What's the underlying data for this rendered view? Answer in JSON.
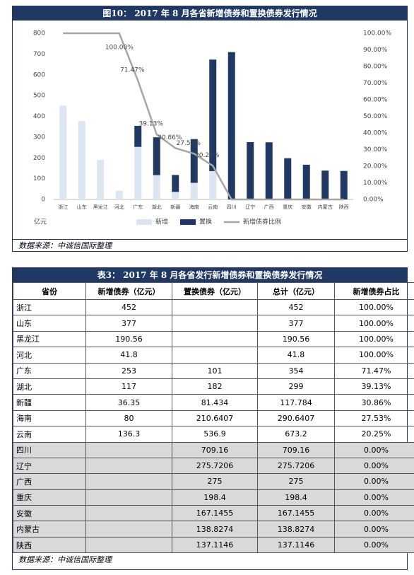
{
  "figure_title": "图10： 2017 年 8 月各省新增债券和置换债券发行情况",
  "chart_data": {
    "type": "stacked-bar-line",
    "y_label": "亿元",
    "categories": [
      "浙江",
      "山东",
      "黑龙江",
      "河北",
      "广东",
      "湖北",
      "新疆",
      "海南",
      "云南",
      "四川",
      "辽宁",
      "广西",
      "重庆",
      "安徽",
      "内蒙古",
      "陕西"
    ],
    "series": [
      {
        "name": "新增",
        "type": "bar",
        "color": "#dce6f2",
        "values": [
          452,
          377,
          190.56,
          41.8,
          253,
          117,
          36.35,
          80,
          136.3,
          null,
          null,
          null,
          null,
          null,
          null,
          null
        ]
      },
      {
        "name": "置换",
        "type": "bar",
        "color": "#1f3864",
        "values": [
          null,
          null,
          null,
          null,
          101,
          182,
          81.434,
          210.6407,
          536.9,
          709.16,
          275.7206,
          275,
          198.4,
          167.1455,
          138.8274,
          137.1146
        ]
      },
      {
        "name": "新增债券比例",
        "type": "line",
        "axis": "y2",
        "color": "#a6a6a6",
        "values": [
          100,
          100,
          100,
          100,
          71.47,
          39.13,
          30.86,
          27.53,
          20.25,
          0,
          0,
          0,
          0,
          0,
          0,
          0
        ],
        "value_labels": [
          null,
          null,
          null,
          "100.00%",
          "71.47%",
          "39.13%",
          "30.86%",
          "27.53%",
          "20.25%",
          null,
          null,
          null,
          null,
          null,
          null,
          null
        ]
      }
    ],
    "ylim": [
      0,
      800
    ],
    "yticks": [
      0,
      100,
      200,
      300,
      400,
      500,
      600,
      700,
      800
    ],
    "y2lim": [
      0,
      100
    ],
    "y2ticks": [
      {
        "value": 0,
        "label": "0.00%"
      },
      {
        "value": 10,
        "label": "10.00%"
      },
      {
        "value": 20,
        "label": "20.00%"
      },
      {
        "value": 30,
        "label": "30.00%"
      },
      {
        "value": 40,
        "label": "40.00%"
      },
      {
        "value": 50,
        "label": "50.00%"
      },
      {
        "value": 60,
        "label": "60.00%"
      },
      {
        "value": 70,
        "label": "70.00%"
      },
      {
        "value": 80,
        "label": "80.00%"
      },
      {
        "value": 90,
        "label": "90.00%"
      },
      {
        "value": 100,
        "label": "100.00%"
      }
    ],
    "legend": "bottom"
  },
  "chart_source": "数据来源：中诚信国际整理",
  "table": {
    "title": "表3： 2017 年 8 月各省发行新增债券和置换债券发行情况",
    "header": [
      "省份",
      "新增债券（亿元）",
      "置换债券（亿元）",
      "总计（亿元）",
      "新增债券占比"
    ],
    "rows": [
      [
        "浙江",
        "452",
        null,
        "452",
        "100.00%"
      ],
      [
        "山东",
        "377",
        null,
        "377",
        "100.00%"
      ],
      [
        "黑龙江",
        "190.56",
        null,
        "190.56",
        "100.00%"
      ],
      [
        "河北",
        "41.8",
        null,
        "41.8",
        "100.00%"
      ],
      [
        "广东",
        "253",
        "101",
        "354",
        "71.47%"
      ],
      [
        "湖北",
        "117",
        "182",
        "299",
        "39.13%"
      ],
      [
        "新疆",
        "36.35",
        "81.434",
        "117.784",
        "30.86%"
      ],
      [
        "海南",
        "80",
        "210.6407",
        "290.6407",
        "27.53%"
      ],
      [
        "云南",
        "136.3",
        "536.9",
        "673.2",
        "20.25%"
      ],
      [
        "四川",
        null,
        "709.16",
        "709.16",
        "0.00%"
      ],
      [
        "辽宁",
        null,
        "275.7206",
        "275.7206",
        "0.00%"
      ],
      [
        "广西",
        null,
        "275",
        "275",
        "0.00%"
      ],
      [
        "重庆",
        null,
        "198.4",
        "198.4",
        "0.00%"
      ],
      [
        "安徽",
        null,
        "167.1455",
        "167.1455",
        "0.00%"
      ],
      [
        "内蒙古",
        null,
        "138.8274",
        "138.8274",
        "0.00%"
      ],
      [
        "陕西",
        null,
        "137.1146",
        "137.1146",
        "0.00%"
      ]
    ],
    "source": "数据来源：中诚信国际整理"
  }
}
